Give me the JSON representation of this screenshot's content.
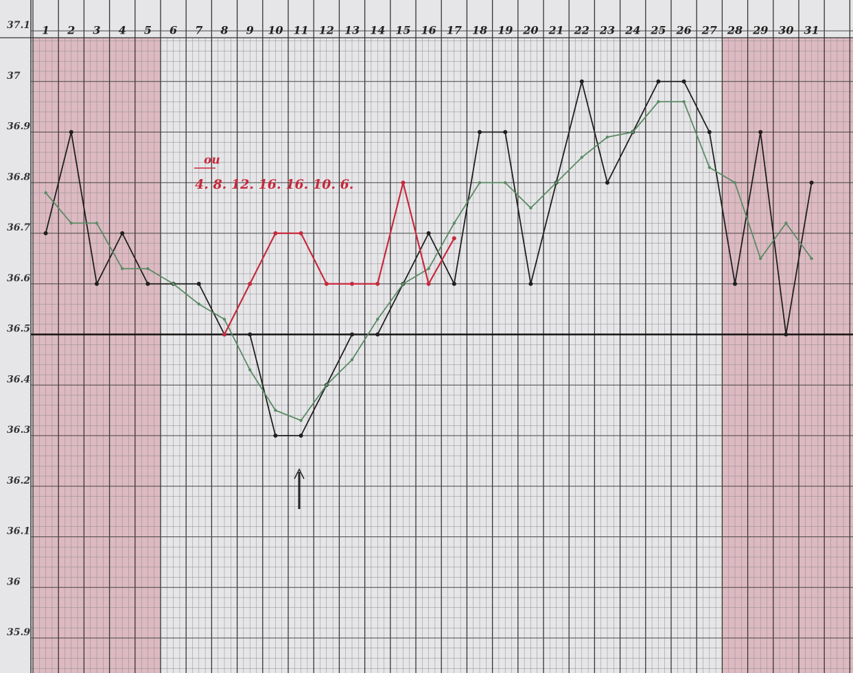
{
  "chart_data": {
    "type": "line",
    "categories": [
      1,
      2,
      3,
      4,
      5,
      6,
      7,
      8,
      9,
      10,
      11,
      12,
      13,
      14,
      15,
      16,
      17,
      18,
      19,
      20,
      21,
      22,
      23,
      24,
      25,
      26,
      27,
      28,
      29,
      30,
      31
    ],
    "series": [
      {
        "color": "#1e1e1e",
        "values": [
          36.7,
          36.9,
          36.6,
          36.7,
          36.6,
          36.6,
          36.6,
          36.5,
          36.5,
          36.3,
          36.3,
          36.4,
          36.5,
          36.5,
          36.6,
          36.7,
          36.6,
          36.9,
          36.9,
          36.6,
          36.8,
          37.0,
          36.8,
          36.9,
          37.0,
          37.0,
          36.9,
          36.6,
          36.9,
          36.5,
          36.8
        ]
      },
      {
        "color": "#5a8a64",
        "values": [
          36.78,
          36.72,
          36.72,
          36.63,
          36.63,
          36.6,
          36.56,
          36.53,
          36.43,
          36.35,
          36.33,
          36.4,
          36.45,
          36.53,
          36.6,
          36.63,
          36.72,
          36.8,
          36.8,
          36.75,
          36.8,
          36.85,
          36.89,
          36.9,
          36.96,
          36.96,
          36.83,
          36.8,
          36.65,
          36.72,
          36.65
        ]
      },
      {
        "color": "#c8283c",
        "values": [
          null,
          null,
          null,
          null,
          null,
          null,
          null,
          36.5,
          36.6,
          36.7,
          36.7,
          36.6,
          36.6,
          36.6,
          36.8,
          36.6,
          36.69,
          null,
          null,
          null,
          null,
          null,
          null,
          null,
          null,
          null,
          null,
          null,
          null,
          null,
          null
        ]
      }
    ],
    "ylim": [
      35.9,
      37.1
    ],
    "yticks": [
      37.1,
      37,
      36.9,
      36.8,
      36.7,
      36.6,
      36.5,
      36.4,
      36.3,
      36.2,
      36.1,
      36,
      35.9
    ],
    "baseline": 36.5,
    "shaded_ranges": [
      [
        1,
        5
      ],
      [
        28,
        31
      ]
    ],
    "annotations": [
      "ou",
      "4. 8. 12. 16. 16. 10. 6."
    ],
    "grid": true
  }
}
